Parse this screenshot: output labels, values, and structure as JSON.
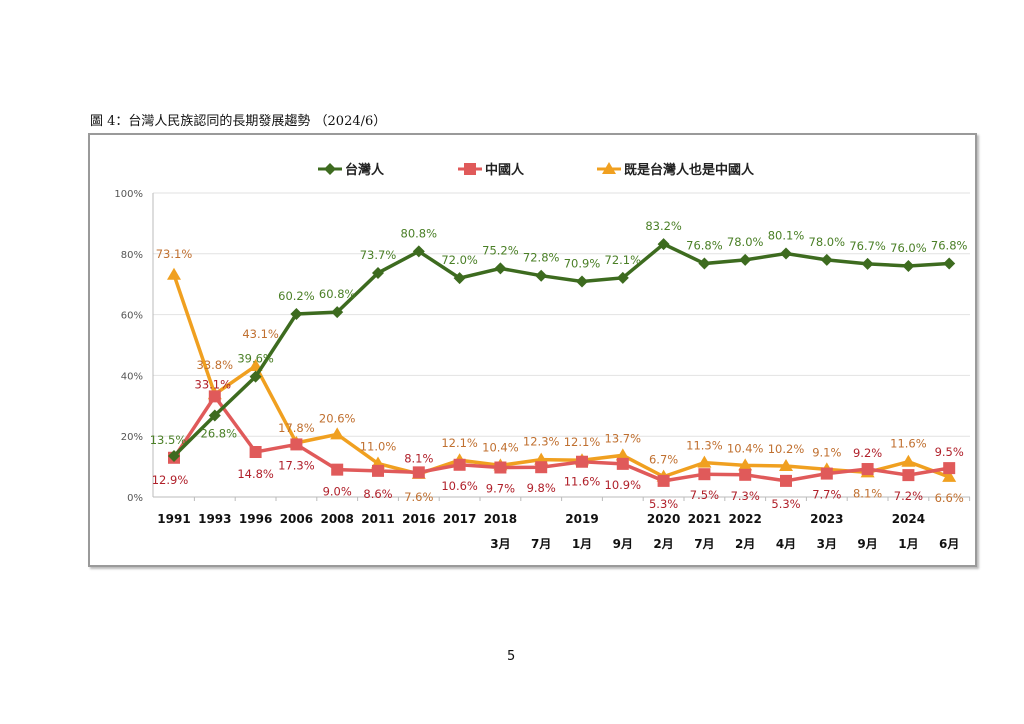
{
  "figure_title": "圖 4：台灣人民族認同的長期發展趨勢 （2024/6）",
  "page_number": "5",
  "chart_data": {
    "type": "line",
    "title": "",
    "xlabel": "",
    "ylabel": "",
    "ylim": [
      0,
      100
    ],
    "yticks": [
      "0%",
      "20%",
      "40%",
      "60%",
      "80%",
      "100%"
    ],
    "grid": true,
    "legend_position": "top",
    "categories": [
      "1991",
      "1993",
      "1996",
      "2006",
      "2008",
      "2011",
      "2016",
      "2017",
      "2018 3月",
      "2018 7月",
      "2019 1月",
      "2019 9月",
      "2020 2月",
      "2021 7月",
      "2022 2月",
      "2022 4月",
      "2023 3月",
      "2023 9月",
      "2024 1月",
      "2024 6月"
    ],
    "year_labels": [
      "1991",
      "1993",
      "1996",
      "2006",
      "2008",
      "2011",
      "2016",
      "2017",
      "2018",
      "",
      "2019",
      "",
      "2020",
      "2021",
      "2022",
      "",
      "2023",
      "",
      "2024",
      ""
    ],
    "month_labels": [
      "",
      "",
      "",
      "",
      "",
      "",
      "",
      "",
      "3月",
      "7月",
      "1月",
      "9月",
      "2月",
      "7月",
      "2月",
      "4月",
      "3月",
      "9月",
      "1月",
      "6月"
    ],
    "series": [
      {
        "name": "台灣人",
        "color": "#3d6b1f",
        "label_color": "#4a7f26",
        "marker": "diamond",
        "values": [
          13.5,
          26.8,
          39.6,
          60.2,
          60.8,
          73.7,
          80.8,
          72.0,
          75.2,
          72.8,
          70.9,
          72.1,
          83.2,
          76.8,
          78.0,
          80.1,
          78.0,
          76.7,
          76.0,
          76.8
        ]
      },
      {
        "name": "中國人",
        "color": "#e05a5a",
        "label_color": "#b0202a",
        "marker": "square",
        "values": [
          12.9,
          33.1,
          14.8,
          17.3,
          9.0,
          8.6,
          8.1,
          10.6,
          9.7,
          9.8,
          11.6,
          10.9,
          5.3,
          7.5,
          7.3,
          5.3,
          7.7,
          9.2,
          7.2,
          9.5
        ]
      },
      {
        "name": "既是台灣人也是中國人",
        "color": "#f0a020",
        "label_color": "#c07030",
        "marker": "triangle",
        "values": [
          73.1,
          33.8,
          43.1,
          17.8,
          20.6,
          11.0,
          7.6,
          12.1,
          10.4,
          12.3,
          12.1,
          13.7,
          6.7,
          11.3,
          10.4,
          10.2,
          9.1,
          8.1,
          11.6,
          6.6
        ]
      }
    ]
  }
}
